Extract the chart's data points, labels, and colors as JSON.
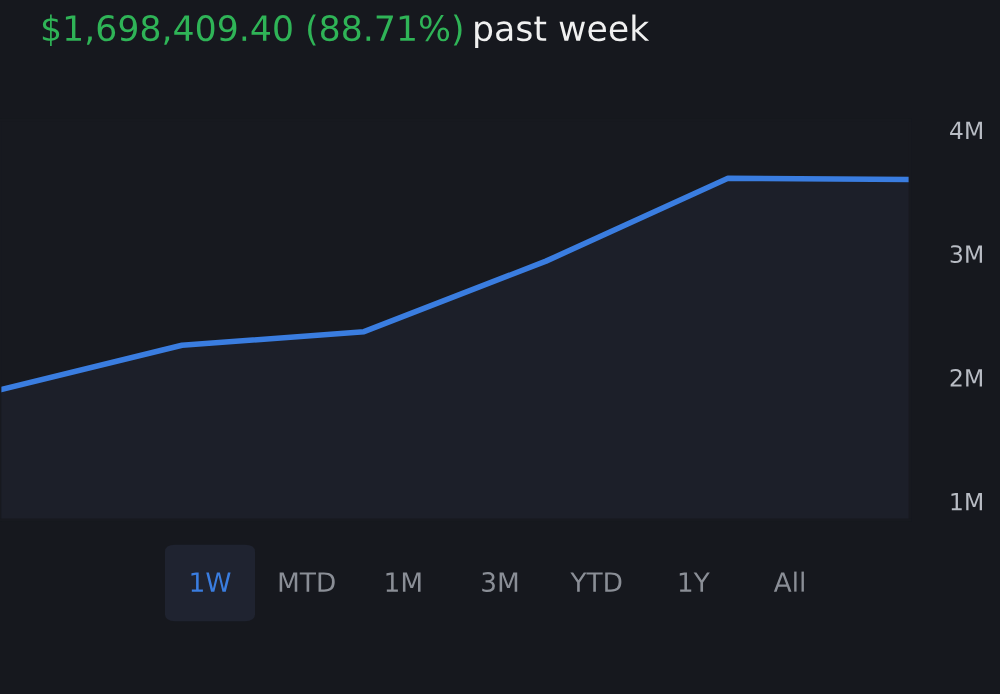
{
  "chart_data": {
    "type": "area",
    "title": "$1,698,409.40 (88.71%)",
    "subtitle": "past week",
    "categories": [
      null,
      null,
      null,
      null,
      null,
      null
    ],
    "series": [
      {
        "color": "#3a7de0",
        "values": [
          1900000,
          2260000,
          2370000,
          2940000,
          3610000,
          3600000
        ]
      }
    ],
    "ylim": [
      850000,
      4080000
    ],
    "yticks": [
      {
        "value": 1000000,
        "label": "1M"
      },
      {
        "value": 2000000,
        "label": "2M"
      },
      {
        "value": 3000000,
        "label": "3M"
      },
      {
        "value": 4000000,
        "label": "4M"
      }
    ],
    "tick_labels": "y",
    "grid": false,
    "annotations": [
      "1W",
      "MTD",
      "1M",
      "3M",
      "YTD",
      "1Y",
      "All"
    ]
  }
}
